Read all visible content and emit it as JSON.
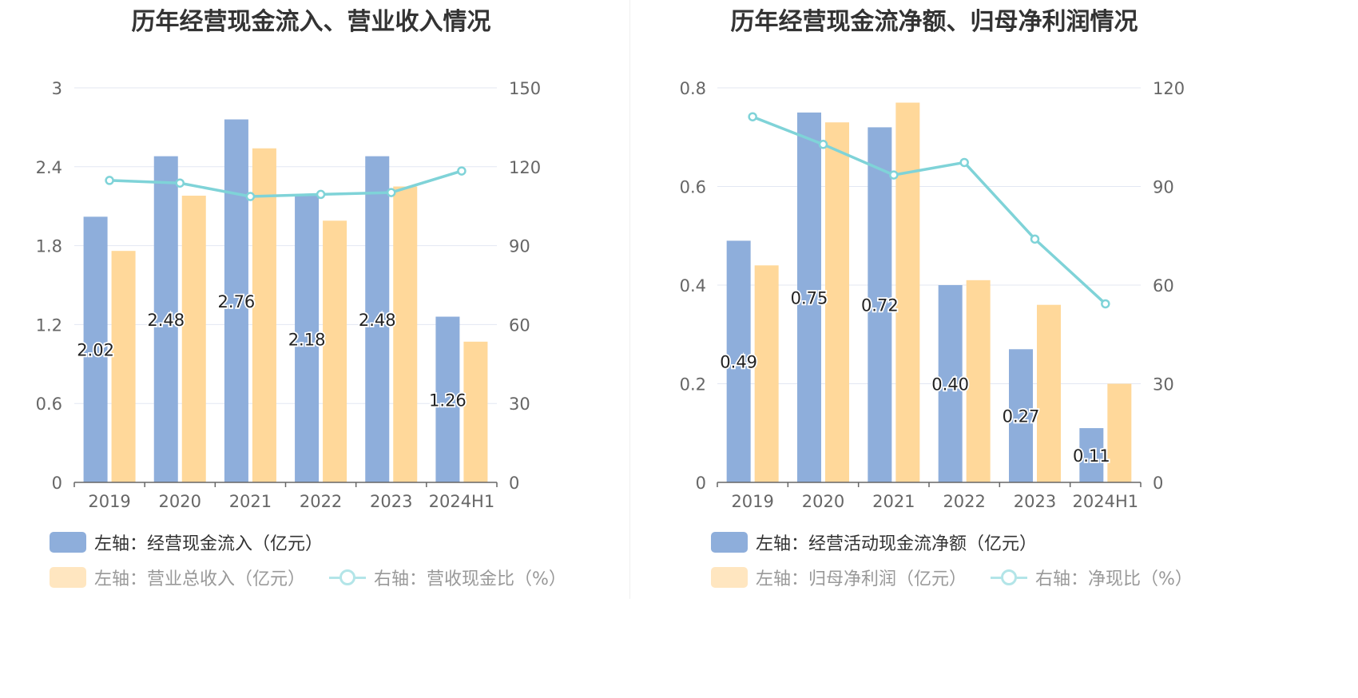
{
  "colors": {
    "bar_primary": "#8eaedb",
    "bar_primary_dim": "#b9cceb",
    "bar_secondary": "#ffd89a",
    "bar_secondary_dim": "#ffe6c0",
    "line": "#7fd3d8",
    "line_dim": "#b3e5e8"
  },
  "chart_data": [
    {
      "type": "bar+line",
      "title": "历年经营现金流入、营业收入情况",
      "categories": [
        "2019",
        "2020",
        "2021",
        "2022",
        "2023",
        "2024H1"
      ],
      "left_axis": {
        "min": 0,
        "max": 3,
        "ticks": [
          "0",
          "0.6",
          "1.2",
          "1.8",
          "2.4",
          "3"
        ]
      },
      "right_axis": {
        "min": 0,
        "max": 150,
        "ticks": [
          "0",
          "30",
          "60",
          "90",
          "120",
          "150"
        ]
      },
      "series": [
        {
          "name": "经营现金流入",
          "axis": "left",
          "kind": "bar",
          "values": [
            2.02,
            2.48,
            2.76,
            2.18,
            2.48,
            1.26
          ],
          "labels": [
            "2.02",
            "2.48",
            "2.76",
            "2.18",
            "2.48",
            "1.26"
          ]
        },
        {
          "name": "营业总收入",
          "axis": "left",
          "kind": "bar",
          "values": [
            1.76,
            2.18,
            2.54,
            1.99,
            2.25,
            1.07
          ]
        },
        {
          "name": "营收现金比",
          "axis": "right",
          "kind": "line",
          "values": [
            114.8,
            113.8,
            108.7,
            109.5,
            110.2,
            118.4
          ]
        }
      ],
      "legend": {
        "item1": "左轴：经营现金流入（亿元）",
        "item2": "左轴：营业总收入（亿元）",
        "item3": "右轴：营收现金比（%）"
      }
    },
    {
      "type": "bar+line",
      "title": "历年经营现金流净额、归母净利润情况",
      "categories": [
        "2019",
        "2020",
        "2021",
        "2022",
        "2023",
        "2024H1"
      ],
      "left_axis": {
        "min": 0,
        "max": 0.8,
        "ticks": [
          "0",
          "0.2",
          "0.4",
          "0.6",
          "0.8"
        ]
      },
      "right_axis": {
        "min": 0,
        "max": 120,
        "ticks": [
          "0",
          "30",
          "60",
          "90",
          "120"
        ]
      },
      "series": [
        {
          "name": "经营活动现金流净额",
          "axis": "left",
          "kind": "bar",
          "values": [
            0.49,
            0.75,
            0.72,
            0.4,
            0.27,
            0.11
          ],
          "labels": [
            "0.49",
            "0.75",
            "0.72",
            "0.40",
            "0.27",
            "0.11"
          ]
        },
        {
          "name": "归母净利润",
          "axis": "left",
          "kind": "bar",
          "values": [
            0.44,
            0.73,
            0.77,
            0.41,
            0.36,
            0.2
          ]
        },
        {
          "name": "净现比",
          "axis": "right",
          "kind": "line",
          "values": [
            111.2,
            102.8,
            93.5,
            97.3,
            74.0,
            54.3
          ]
        }
      ],
      "legend": {
        "item1": "左轴：经营活动现金流净额（亿元）",
        "item2": "左轴：归母净利润（亿元）",
        "item3": "右轴：净现比（%）"
      }
    }
  ]
}
